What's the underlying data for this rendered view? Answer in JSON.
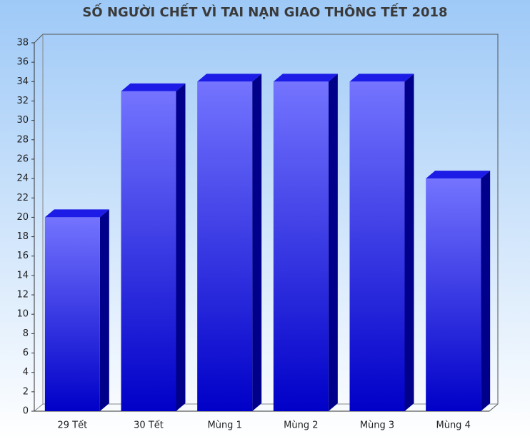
{
  "chart_data": {
    "type": "bar3d",
    "title": "SỐ NGƯỜI CHẾT VÌ TAI NẠN GIAO THÔNG TẾT 2018",
    "categories": [
      "29 Tết",
      "30 Tết",
      "Mùng 1",
      "Mùng 2",
      "Mùng 3",
      "Mùng 4"
    ],
    "values": [
      20,
      33,
      34,
      34,
      34,
      24
    ],
    "color": "#1a1aee",
    "ylim": [
      0,
      38
    ],
    "yticks": [
      0,
      2,
      4,
      6,
      8,
      10,
      12,
      14,
      16,
      18,
      20,
      22,
      24,
      26,
      28,
      30,
      32,
      34,
      36,
      38
    ],
    "grid": false
  }
}
